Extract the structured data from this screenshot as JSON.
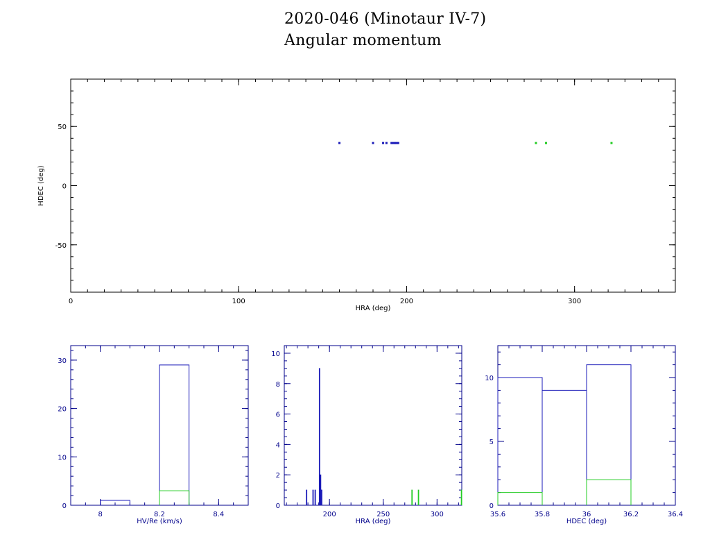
{
  "title": "2020-046 (Minotaur IV-7)",
  "subtitle": "Angular momentum",
  "colors": {
    "blue": "#1a1ab8",
    "green": "#22cc22",
    "axis_main": "#000000",
    "axis_small": "#00008b"
  },
  "chart_data": [
    {
      "type": "scatter",
      "xlabel": "HRA (deg)",
      "ylabel": "HDEC (deg)",
      "xlim": [
        0,
        360
      ],
      "ylim": [
        -90,
        90
      ],
      "xticks": [
        0,
        100,
        200,
        300
      ],
      "yticks": [
        -50,
        0,
        50
      ],
      "series": [
        {
          "color": "blue",
          "points": [
            [
              160,
              36
            ],
            [
              180,
              36
            ],
            [
              186,
              36
            ],
            [
              188,
              36
            ],
            [
              191,
              36
            ],
            [
              192,
              36
            ],
            [
              193,
              36
            ],
            [
              194,
              36
            ],
            [
              195,
              36
            ]
          ]
        },
        {
          "color": "green",
          "points": [
            [
              277,
              36
            ],
            [
              283,
              36
            ],
            [
              322,
              36
            ]
          ]
        }
      ]
    },
    {
      "type": "histogram",
      "xlabel": "HV/Re (km/s)",
      "xlim": [
        7.9,
        8.5
      ],
      "ylim": [
        0,
        33
      ],
      "xticks": [
        8,
        8.2,
        8.4
      ],
      "yticks": [
        0,
        10,
        20,
        30
      ],
      "series": [
        {
          "color": "blue",
          "bins": [
            [
              8.0,
              8.1,
              1
            ],
            [
              8.2,
              8.3,
              29
            ]
          ]
        },
        {
          "color": "green",
          "bins": [
            [
              8.2,
              8.3,
              3
            ]
          ]
        }
      ]
    },
    {
      "type": "histogram",
      "xlabel": "HRA (deg)",
      "xlim": [
        158,
        323
      ],
      "ylim": [
        0,
        10.5
      ],
      "xticks": [
        200,
        250,
        300
      ],
      "yticks": [
        0,
        2,
        4,
        6,
        8,
        10
      ],
      "series": [
        {
          "color": "blue",
          "bins": [
            [
              178.5,
              179,
              1
            ],
            [
              184.5,
              185,
              1
            ],
            [
              186.5,
              187,
              1
            ],
            [
              190.5,
              191,
              9
            ],
            [
              191.5,
              192,
              2
            ],
            [
              192,
              192.5,
              1
            ],
            [
              192.5,
              193,
              1
            ]
          ]
        },
        {
          "color": "green",
          "bins": [
            [
              276.5,
              277,
              1
            ],
            [
              282.5,
              283,
              1
            ],
            [
              322.5,
              323,
              1
            ]
          ]
        }
      ]
    },
    {
      "type": "histogram",
      "xlabel": "HDEC (deg)",
      "xlim": [
        35.6,
        36.4
      ],
      "ylim": [
        0,
        12.5
      ],
      "xticks": [
        35.6,
        35.8,
        36,
        36.2,
        36.4
      ],
      "yticks": [
        0,
        5,
        10
      ],
      "series": [
        {
          "color": "blue",
          "bins": [
            [
              35.6,
              35.8,
              10
            ],
            [
              35.8,
              36.0,
              9
            ],
            [
              36.0,
              36.2,
              11
            ]
          ]
        },
        {
          "color": "green",
          "bins": [
            [
              35.6,
              35.8,
              1
            ],
            [
              36.0,
              36.2,
              2
            ]
          ]
        }
      ]
    }
  ]
}
